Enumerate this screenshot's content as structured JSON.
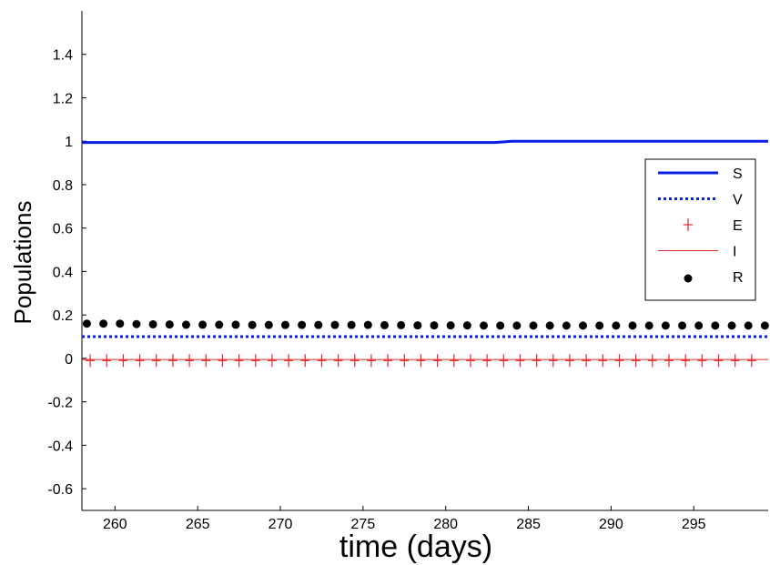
{
  "chart_data": {
    "type": "line",
    "xlabel": "time (days)",
    "ylabel": "Populations",
    "xlim": [
      258,
      299.5
    ],
    "ylim": [
      -0.7,
      1.6
    ],
    "xticks": [
      260,
      265,
      270,
      275,
      280,
      285,
      290,
      295
    ],
    "yticks": [
      -0.6,
      -0.4,
      -0.2,
      0,
      0.2,
      0.4,
      0.6,
      0.8,
      1,
      1.2,
      1.4
    ],
    "ytick_labels": [
      "-0.6",
      "-0.4",
      "-0.2",
      "0",
      "0.2",
      "0.4",
      "0.6",
      "0.8",
      "1",
      "1.2",
      "1.4"
    ],
    "legend_position": "right",
    "series": [
      {
        "name": "S",
        "style": "solid",
        "color": "#0a1ee8",
        "x": [
          258,
          283,
          284,
          299.5
        ],
        "y": [
          0.994,
          0.994,
          1.0,
          1.0
        ]
      },
      {
        "name": "V",
        "style": "dotted",
        "color": "#0a1ee8",
        "x": [
          258,
          299.5
        ],
        "y": [
          0.1,
          0.1
        ]
      },
      {
        "name": "E",
        "style": "plus-markers",
        "color": "#e8262a",
        "x": [
          258.5,
          259.5,
          260.5,
          261.5,
          262.5,
          263.5,
          264.5,
          265.5,
          266.5,
          267.5,
          268.5,
          269.5,
          270.5,
          271.5,
          272.5,
          273.5,
          274.5,
          275.5,
          276.5,
          277.5,
          278.5,
          279.5,
          280.5,
          281.5,
          282.5,
          283.5,
          284.5,
          285.5,
          286.5,
          287.5,
          288.5,
          289.5,
          290.5,
          291.5,
          292.5,
          293.5,
          294.5,
          295.5,
          296.5,
          297.5,
          298.5
        ],
        "y": [
          -0.01,
          -0.01,
          -0.01,
          -0.01,
          -0.01,
          -0.01,
          -0.01,
          -0.01,
          -0.01,
          -0.01,
          -0.01,
          -0.01,
          -0.01,
          -0.01,
          -0.01,
          -0.01,
          -0.01,
          -0.01,
          -0.01,
          -0.01,
          -0.01,
          -0.01,
          -0.01,
          -0.01,
          -0.01,
          -0.01,
          -0.01,
          -0.01,
          -0.01,
          -0.01,
          -0.01,
          -0.01,
          -0.01,
          -0.01,
          -0.01,
          -0.01,
          -0.01,
          -0.01,
          -0.01,
          -0.01,
          -0.01
        ]
      },
      {
        "name": "I",
        "style": "thin-solid",
        "color": "#e8262a",
        "x": [
          258,
          299.5
        ],
        "y": [
          -0.005,
          -0.005
        ]
      },
      {
        "name": "R",
        "style": "dot-markers",
        "color": "#000000",
        "x": [
          258.3,
          259.3,
          260.3,
          261.3,
          262.3,
          263.3,
          264.3,
          265.3,
          266.3,
          267.3,
          268.3,
          269.3,
          270.3,
          271.3,
          272.3,
          273.3,
          274.3,
          275.3,
          276.3,
          277.3,
          278.3,
          279.3,
          280.3,
          281.3,
          282.3,
          283.3,
          284.3,
          285.3,
          286.3,
          287.3,
          288.3,
          289.3,
          290.3,
          291.3,
          292.3,
          293.3,
          294.3,
          295.3,
          296.3,
          297.3,
          298.3,
          299.3
        ],
        "y": [
          0.16,
          0.16,
          0.16,
          0.158,
          0.157,
          0.156,
          0.155,
          0.155,
          0.155,
          0.155,
          0.154,
          0.154,
          0.154,
          0.154,
          0.154,
          0.154,
          0.154,
          0.154,
          0.153,
          0.153,
          0.152,
          0.152,
          0.152,
          0.152,
          0.151,
          0.151,
          0.151,
          0.151,
          0.151,
          0.151,
          0.151,
          0.151,
          0.151,
          0.151,
          0.151,
          0.151,
          0.151,
          0.151,
          0.151,
          0.151,
          0.151,
          0.151
        ]
      }
    ]
  }
}
